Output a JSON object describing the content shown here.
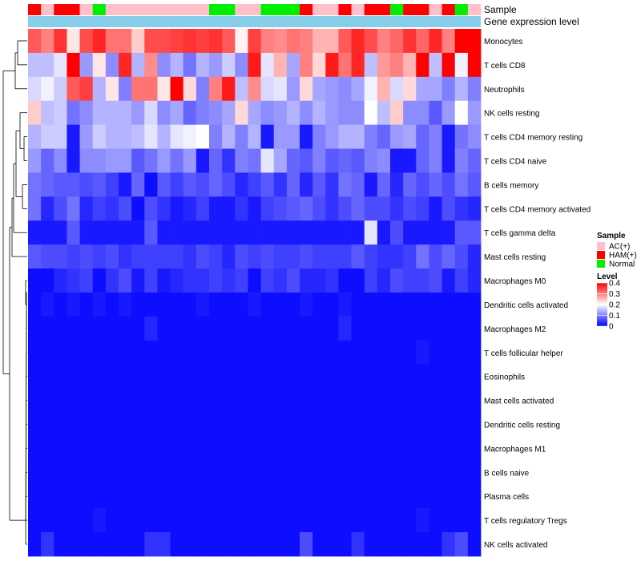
{
  "chart_data": {
    "type": "heatmap",
    "annotation_rows": [
      "Sample",
      "Gene expression level"
    ],
    "samples": [
      "HAM(+)",
      "AC(+)",
      "HAM(+)",
      "HAM(+)",
      "AC(+)",
      "Normal",
      "AC(+)",
      "AC(+)",
      "AC(+)",
      "AC(+)",
      "AC(+)",
      "AC(+)",
      "AC(+)",
      "AC(+)",
      "Normal",
      "Normal",
      "AC(+)",
      "AC(+)",
      "Normal",
      "Normal",
      "Normal",
      "HAM(+)",
      "AC(+)",
      "AC(+)",
      "HAM(+)",
      "AC(+)",
      "HAM(+)",
      "HAM(+)",
      "Normal",
      "HAM(+)",
      "HAM(+)",
      "AC(+)",
      "HAM(+)",
      "Normal",
      "AC(+)"
    ],
    "rows": [
      "Monocytes",
      "T cells CD8",
      "Neutrophils",
      "NK cells resting",
      "T cells CD4 memory resting",
      "T cells CD4 naive",
      "B cells memory",
      "T cells CD4 memory activated",
      "T cells gamma delta",
      "Mast cells resting",
      "Macrophages M0",
      "Dendritic cells activated",
      "Macrophages M2",
      "T cells follicular helper",
      "Eosinophils",
      "Mast cells activated",
      "Dendritic cells resting",
      "Macrophages M1",
      "B cells naive",
      "Plasma cells",
      "T cells regulatory  Tregs",
      "NK cells activated"
    ],
    "values": [
      [
        0.33,
        0.3,
        0.36,
        0.22,
        0.34,
        0.37,
        0.31,
        0.31,
        0.24,
        0.34,
        0.34,
        0.35,
        0.36,
        0.35,
        0.36,
        0.33,
        0.21,
        0.35,
        0.3,
        0.29,
        0.31,
        0.3,
        0.26,
        0.26,
        0.33,
        0.37,
        0.34,
        0.3,
        0.32,
        0.36,
        0.32,
        0.37,
        0.3,
        0.4,
        0.4
      ],
      [
        0.15,
        0.15,
        0.18,
        0.4,
        0.12,
        0.22,
        0.11,
        0.37,
        0.14,
        0.29,
        0.11,
        0.14,
        0.09,
        0.14,
        0.12,
        0.16,
        0.11,
        0.38,
        0.18,
        0.26,
        0.13,
        0.3,
        0.23,
        0.38,
        0.31,
        0.37,
        0.15,
        0.28,
        0.3,
        0.26,
        0.4,
        0.15,
        0.4,
        0.19,
        0.4
      ],
      [
        0.17,
        0.19,
        0.16,
        0.33,
        0.35,
        0.14,
        0.22,
        0.1,
        0.31,
        0.31,
        0.22,
        0.4,
        0.23,
        0.1,
        0.3,
        0.38,
        0.15,
        0.29,
        0.17,
        0.18,
        0.12,
        0.23,
        0.13,
        0.12,
        0.11,
        0.13,
        0.19,
        0.26,
        0.17,
        0.23,
        0.13,
        0.13,
        0.1,
        0.14,
        0.1
      ],
      [
        0.24,
        0.15,
        0.16,
        0.09,
        0.11,
        0.14,
        0.14,
        0.14,
        0.12,
        0.17,
        0.11,
        0.13,
        0.08,
        0.1,
        0.11,
        0.13,
        0.23,
        0.13,
        0.11,
        0.12,
        0.14,
        0.11,
        0.14,
        0.12,
        0.11,
        0.11,
        0.2,
        0.15,
        0.24,
        0.11,
        0.11,
        0.07,
        0.12,
        0.2,
        0.12
      ],
      [
        0.14,
        0.16,
        0.16,
        0.02,
        0.12,
        0.16,
        0.14,
        0.14,
        0.15,
        0.18,
        0.14,
        0.18,
        0.19,
        0.2,
        0.1,
        0.14,
        0.1,
        0.14,
        0.02,
        0.12,
        0.12,
        0.02,
        0.1,
        0.12,
        0.14,
        0.14,
        0.1,
        0.08,
        0.12,
        0.13,
        0.08,
        0.1,
        0.02,
        0.09,
        0.11
      ],
      [
        0.12,
        0.08,
        0.11,
        0.02,
        0.11,
        0.11,
        0.12,
        0.12,
        0.07,
        0.09,
        0.12,
        0.09,
        0.12,
        0.02,
        0.08,
        0.04,
        0.1,
        0.09,
        0.18,
        0.13,
        0.08,
        0.07,
        0.1,
        0.07,
        0.08,
        0.07,
        0.1,
        0.11,
        0.02,
        0.02,
        0.08,
        0.1,
        0.02,
        0.1,
        0.08
      ],
      [
        0.09,
        0.08,
        0.07,
        0.07,
        0.06,
        0.07,
        0.05,
        0.02,
        0.08,
        0.01,
        0.07,
        0.05,
        0.07,
        0.06,
        0.08,
        0.06,
        0.03,
        0.05,
        0.07,
        0.04,
        0.08,
        0.03,
        0.07,
        0.04,
        0.09,
        0.08,
        0.02,
        0.08,
        0.03,
        0.08,
        0.06,
        0.08,
        0.06,
        0.09,
        0.07
      ],
      [
        0.09,
        0.03,
        0.06,
        0.09,
        0.03,
        0.05,
        0.04,
        0.06,
        0.01,
        0.06,
        0.04,
        0.02,
        0.03,
        0.05,
        0.02,
        0.02,
        0.04,
        0.02,
        0.05,
        0.06,
        0.07,
        0.08,
        0.06,
        0.04,
        0.06,
        0.08,
        0.06,
        0.06,
        0.04,
        0.06,
        0.05,
        0.02,
        0.06,
        0.04,
        0.03
      ],
      [
        0.02,
        0.02,
        0.02,
        0.07,
        0.02,
        0.02,
        0.02,
        0.02,
        0.02,
        0.07,
        0.02,
        0.02,
        0.02,
        0.02,
        0.02,
        0.02,
        0.02,
        0.02,
        0.02,
        0.02,
        0.02,
        0.02,
        0.02,
        0.02,
        0.02,
        0.02,
        0.18,
        0.02,
        0.06,
        0.02,
        0.02,
        0.02,
        0.02,
        0.07,
        0.07
      ],
      [
        0.07,
        0.06,
        0.06,
        0.05,
        0.06,
        0.05,
        0.06,
        0.04,
        0.05,
        0.05,
        0.05,
        0.05,
        0.04,
        0.06,
        0.05,
        0.03,
        0.06,
        0.05,
        0.06,
        0.05,
        0.05,
        0.06,
        0.05,
        0.05,
        0.05,
        0.07,
        0.05,
        0.04,
        0.04,
        0.05,
        0.09,
        0.06,
        0.08,
        0.06,
        0.03
      ],
      [
        0.01,
        0.01,
        0.03,
        0.04,
        0.05,
        0.01,
        0.04,
        0.06,
        0.02,
        0.05,
        0.02,
        0.03,
        0.04,
        0.04,
        0.05,
        0.04,
        0.05,
        0.01,
        0.05,
        0.04,
        0.06,
        0.03,
        0.03,
        0.04,
        0.01,
        0.01,
        0.05,
        0.03,
        0.06,
        0.05,
        0.05,
        0.06,
        0.02,
        0.05,
        0.03
      ],
      [
        0.01,
        0.02,
        0.01,
        0.02,
        0.01,
        0.02,
        0.01,
        0.02,
        0.01,
        0.01,
        0.01,
        0.01,
        0.01,
        0.02,
        0.01,
        0.01,
        0.01,
        0.02,
        0.01,
        0.01,
        0.01,
        0.02,
        0.01,
        0.01,
        0.02,
        0.01,
        0.01,
        0.01,
        0.01,
        0.01,
        0.01,
        0.01,
        0.01,
        0.01,
        0.01
      ],
      [
        0.01,
        0.01,
        0.01,
        0.01,
        0.01,
        0.01,
        0.01,
        0.01,
        0.01,
        0.03,
        0.01,
        0.01,
        0.01,
        0.01,
        0.01,
        0.01,
        0.01,
        0.01,
        0.01,
        0.01,
        0.01,
        0.01,
        0.01,
        0.01,
        0.03,
        0.01,
        0.01,
        0.01,
        0.01,
        0.01,
        0.01,
        0.01,
        0.01,
        0.01,
        0.01
      ],
      [
        0.01,
        0.01,
        0.01,
        0.01,
        0.01,
        0.01,
        0.01,
        0.01,
        0.01,
        0.01,
        0.01,
        0.01,
        0.01,
        0.01,
        0.01,
        0.01,
        0.01,
        0.01,
        0.01,
        0.01,
        0.01,
        0.01,
        0.01,
        0.01,
        0.01,
        0.01,
        0.01,
        0.01,
        0.01,
        0.01,
        0.02,
        0.01,
        0.01,
        0.01,
        0.01
      ],
      [
        0.01,
        0.01,
        0.01,
        0.01,
        0.01,
        0.01,
        0.01,
        0.01,
        0.01,
        0.01,
        0.01,
        0.01,
        0.01,
        0.01,
        0.01,
        0.01,
        0.01,
        0.01,
        0.01,
        0.01,
        0.01,
        0.01,
        0.01,
        0.01,
        0.01,
        0.01,
        0.01,
        0.01,
        0.01,
        0.01,
        0.01,
        0.01,
        0.01,
        0.01,
        0.01
      ],
      [
        0.01,
        0.01,
        0.01,
        0.01,
        0.01,
        0.01,
        0.01,
        0.01,
        0.01,
        0.01,
        0.01,
        0.01,
        0.01,
        0.01,
        0.01,
        0.01,
        0.01,
        0.01,
        0.01,
        0.01,
        0.01,
        0.01,
        0.01,
        0.01,
        0.01,
        0.01,
        0.01,
        0.01,
        0.01,
        0.01,
        0.01,
        0.01,
        0.01,
        0.01,
        0.01
      ],
      [
        0.01,
        0.01,
        0.01,
        0.01,
        0.01,
        0.01,
        0.01,
        0.01,
        0.01,
        0.01,
        0.01,
        0.01,
        0.01,
        0.01,
        0.01,
        0.01,
        0.01,
        0.01,
        0.01,
        0.01,
        0.01,
        0.01,
        0.01,
        0.01,
        0.01,
        0.01,
        0.01,
        0.01,
        0.01,
        0.01,
        0.01,
        0.01,
        0.01,
        0.01,
        0.01
      ],
      [
        0.01,
        0.01,
        0.01,
        0.01,
        0.01,
        0.01,
        0.01,
        0.01,
        0.01,
        0.01,
        0.01,
        0.01,
        0.01,
        0.01,
        0.01,
        0.01,
        0.01,
        0.01,
        0.01,
        0.01,
        0.01,
        0.01,
        0.01,
        0.01,
        0.01,
        0.01,
        0.01,
        0.01,
        0.01,
        0.01,
        0.01,
        0.01,
        0.01,
        0.01,
        0.01
      ],
      [
        0.01,
        0.01,
        0.01,
        0.01,
        0.01,
        0.01,
        0.01,
        0.01,
        0.01,
        0.01,
        0.01,
        0.01,
        0.01,
        0.01,
        0.01,
        0.01,
        0.01,
        0.01,
        0.01,
        0.01,
        0.01,
        0.01,
        0.01,
        0.01,
        0.01,
        0.01,
        0.01,
        0.01,
        0.01,
        0.01,
        0.01,
        0.01,
        0.01,
        0.01,
        0.01
      ],
      [
        0.01,
        0.01,
        0.01,
        0.01,
        0.01,
        0.01,
        0.01,
        0.01,
        0.01,
        0.01,
        0.01,
        0.01,
        0.01,
        0.01,
        0.01,
        0.01,
        0.01,
        0.01,
        0.01,
        0.01,
        0.01,
        0.01,
        0.01,
        0.01,
        0.01,
        0.01,
        0.01,
        0.01,
        0.01,
        0.01,
        0.01,
        0.01,
        0.01,
        0.01,
        0.01
      ],
      [
        0.01,
        0.01,
        0.01,
        0.01,
        0.01,
        0.02,
        0.01,
        0.01,
        0.01,
        0.01,
        0.01,
        0.01,
        0.01,
        0.01,
        0.01,
        0.01,
        0.01,
        0.01,
        0.01,
        0.01,
        0.01,
        0.01,
        0.01,
        0.01,
        0.01,
        0.01,
        0.01,
        0.01,
        0.01,
        0.01,
        0.02,
        0.01,
        0.01,
        0.01,
        0.01
      ],
      [
        0.01,
        0.04,
        0.01,
        0.01,
        0.01,
        0.01,
        0.01,
        0.01,
        0.01,
        0.04,
        0.04,
        0.01,
        0.01,
        0.01,
        0.01,
        0.01,
        0.01,
        0.01,
        0.01,
        0.01,
        0.01,
        0.06,
        0.01,
        0.01,
        0.01,
        0.04,
        0.01,
        0.01,
        0.01,
        0.01,
        0.01,
        0.01,
        0.04,
        0.06,
        0.01
      ]
    ],
    "value_range": [
      0,
      0.4
    ],
    "color_stops": [
      "#0000ff",
      "#ffffff",
      "#ff0000"
    ],
    "legend_sample": {
      "title": "Sample",
      "entries": [
        {
          "label": "AC(+)",
          "color": "#ffc0cb"
        },
        {
          "label": "HAM(+)",
          "color": "#ff0000"
        },
        {
          "label": "Normal",
          "color": "#00ee00"
        }
      ]
    },
    "legend_level": {
      "title": "Level",
      "ticks": [
        "0.4",
        "0.3",
        "0.2",
        "0.1",
        "0"
      ]
    },
    "expression_bar_color": "#87ceeb"
  }
}
